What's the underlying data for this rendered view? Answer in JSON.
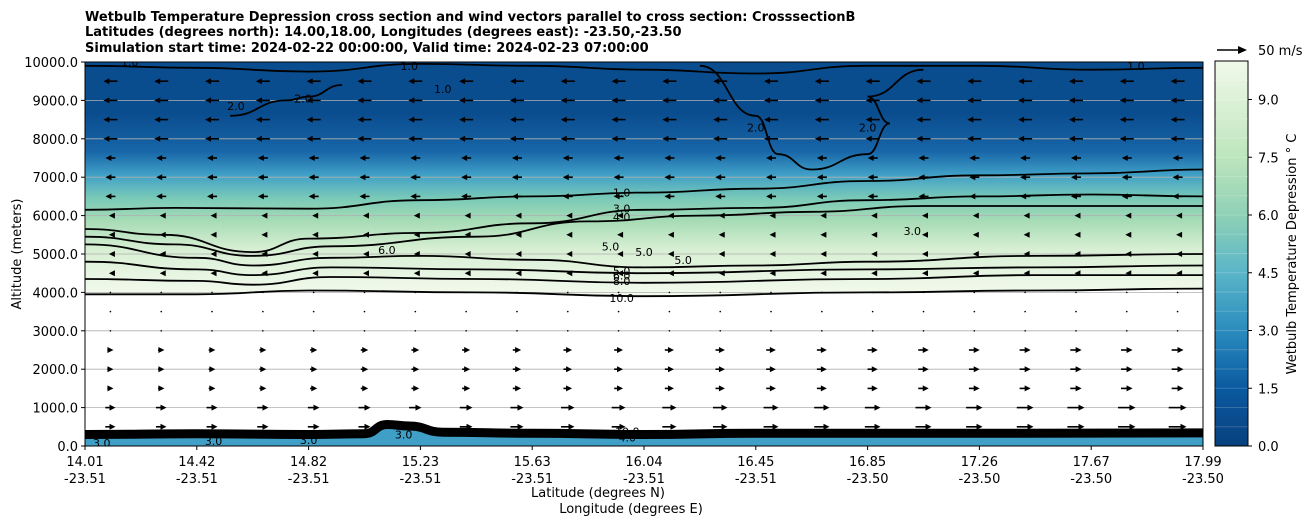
{
  "chart_data": {
    "type": "contour",
    "title": {
      "line1": "Wetbulb Temperature Depression cross section and wind vectors parallel to cross section: CrosssectionB",
      "line2": "Latitudes (degrees north): 14.00,18.00, Longitudes (degrees east): -23.50,-23.50",
      "line3": "Simulation start time: 2024-02-22 00:00:00, Valid time: 2024-02-23 07:00:00"
    },
    "ylabel": "Altitude (meters)",
    "xlabel_lat": "Latitude (degrees N)",
    "xlabel_lon": "Longitude (degrees E)",
    "ylim": [
      0,
      10000
    ],
    "yticks": [
      "0.0",
      "1000.0",
      "2000.0",
      "3000.0",
      "4000.0",
      "5000.0",
      "6000.0",
      "7000.0",
      "8000.0",
      "9000.0",
      "10000.0"
    ],
    "xticks": [
      {
        "lat": "14.01",
        "lon": "-23.51",
        "pos": 0.0
      },
      {
        "lat": "14.42",
        "lon": "-23.51",
        "pos": 0.1
      },
      {
        "lat": "14.82",
        "lon": "-23.51",
        "pos": 0.2
      },
      {
        "lat": "15.23",
        "lon": "-23.51",
        "pos": 0.3
      },
      {
        "lat": "15.63",
        "lon": "-23.51",
        "pos": 0.4
      },
      {
        "lat": "16.04",
        "lon": "-23.51",
        "pos": 0.5
      },
      {
        "lat": "16.45",
        "lon": "-23.51",
        "pos": 0.6
      },
      {
        "lat": "16.85",
        "lon": "-23.50",
        "pos": 0.7
      },
      {
        "lat": "17.26",
        "lon": "-23.50",
        "pos": 0.8
      },
      {
        "lat": "17.67",
        "lon": "-23.50",
        "pos": 0.9
      },
      {
        "lat": "17.99",
        "lon": "-23.50",
        "pos": 1.0
      }
    ],
    "colorbar": {
      "label": "Wetbulb Temperature Depression ° C",
      "range": [
        0,
        10
      ],
      "ticks": [
        "0.0",
        "1.5",
        "3.0",
        "4.5",
        "6.0",
        "7.5",
        "9.0"
      ],
      "tick_values": [
        0,
        1.5,
        3,
        4.5,
        6,
        7.5,
        9
      ]
    },
    "quiver_key": "50 m/s",
    "contour_labels": [
      {
        "text": "1.0",
        "x": 0.48,
        "alt": 6600
      },
      {
        "text": "3.0",
        "x": 0.48,
        "alt": 6180
      },
      {
        "text": "4.0",
        "x": 0.48,
        "alt": 5960
      },
      {
        "text": "5.0",
        "x": 0.47,
        "alt": 5200
      },
      {
        "text": "5.0",
        "x": 0.5,
        "alt": 5050
      },
      {
        "text": "5.0",
        "x": 0.535,
        "alt": 4850
      },
      {
        "text": "5.0",
        "x": 0.48,
        "alt": 4560
      },
      {
        "text": "6.0",
        "x": 0.48,
        "alt": 4440
      },
      {
        "text": "8.0",
        "x": 0.48,
        "alt": 4300
      },
      {
        "text": "10.0",
        "x": 0.48,
        "alt": 3850
      },
      {
        "text": "6.0",
        "x": 0.27,
        "alt": 5100
      },
      {
        "text": "3.0",
        "x": 0.74,
        "alt": 5600
      },
      {
        "text": "2.0",
        "x": 0.6,
        "alt": 8300
      },
      {
        "text": "2.0",
        "x": 0.7,
        "alt": 8300
      },
      {
        "text": "2.0",
        "x": 0.195,
        "alt": 9050
      },
      {
        "text": "2.0",
        "x": 0.135,
        "alt": 8850
      },
      {
        "text": "1.0",
        "x": 0.29,
        "alt": 9900
      },
      {
        "text": "1.0",
        "x": 0.32,
        "alt": 9300
      },
      {
        "text": "1.0",
        "x": 0.94,
        "alt": 9900
      },
      {
        "text": "1.0",
        "x": 0.04,
        "alt": 10000
      },
      {
        "text": "10.0",
        "x": 0.485,
        "alt": 380
      },
      {
        "text": "4.0",
        "x": 0.485,
        "alt": 220
      },
      {
        "text": "3.0",
        "x": 0.115,
        "alt": 130
      },
      {
        "text": "3.0",
        "x": 0.2,
        "alt": 150
      },
      {
        "text": "3.0",
        "x": 0.285,
        "alt": 300
      },
      {
        "text": "3.0",
        "x": 0.015,
        "alt": 80
      }
    ],
    "contour_lines": [
      {
        "level": 1.0,
        "pts": [
          [
            0,
            6150
          ],
          [
            0.08,
            6200
          ],
          [
            0.2,
            6180
          ],
          [
            0.3,
            6400
          ],
          [
            0.4,
            6500
          ],
          [
            0.5,
            6600
          ],
          [
            0.6,
            6700
          ],
          [
            0.7,
            6900
          ],
          [
            0.8,
            7050
          ],
          [
            0.9,
            7100
          ],
          [
            1,
            7200
          ]
        ]
      },
      {
        "level": 3.0,
        "pts": [
          [
            0,
            5650
          ],
          [
            0.07,
            5500
          ],
          [
            0.15,
            5050
          ],
          [
            0.2,
            5400
          ],
          [
            0.3,
            5550
          ],
          [
            0.4,
            5800
          ],
          [
            0.5,
            6150
          ],
          [
            0.6,
            6200
          ],
          [
            0.7,
            6400
          ],
          [
            0.8,
            6500
          ],
          [
            0.9,
            6550
          ],
          [
            1,
            6500
          ]
        ]
      },
      {
        "level": 4.0,
        "pts": [
          [
            0,
            5450
          ],
          [
            0.08,
            5250
          ],
          [
            0.15,
            4950
          ],
          [
            0.22,
            5200
          ],
          [
            0.35,
            5450
          ],
          [
            0.45,
            5850
          ],
          [
            0.55,
            6000
          ],
          [
            0.65,
            6100
          ],
          [
            0.75,
            6250
          ],
          [
            0.9,
            6250
          ],
          [
            1,
            6250
          ]
        ]
      },
      {
        "level": 5.0,
        "pts": [
          [
            0,
            5250
          ],
          [
            0.1,
            4900
          ],
          [
            0.15,
            4700
          ],
          [
            0.22,
            4900
          ],
          [
            0.3,
            4950
          ],
          [
            0.4,
            4850
          ],
          [
            0.5,
            4650
          ],
          [
            0.6,
            4700
          ],
          [
            0.7,
            4800
          ],
          [
            0.85,
            4950
          ],
          [
            1,
            5000
          ]
        ]
      },
      {
        "level": 6.0,
        "pts": [
          [
            0,
            4800
          ],
          [
            0.1,
            4600
          ],
          [
            0.15,
            4450
          ],
          [
            0.22,
            4650
          ],
          [
            0.35,
            4600
          ],
          [
            0.5,
            4500
          ],
          [
            0.7,
            4600
          ],
          [
            0.85,
            4650
          ],
          [
            1,
            4700
          ]
        ]
      },
      {
        "level": 8.0,
        "pts": [
          [
            0,
            4350
          ],
          [
            0.1,
            4300
          ],
          [
            0.15,
            4200
          ],
          [
            0.22,
            4400
          ],
          [
            0.35,
            4350
          ],
          [
            0.5,
            4250
          ],
          [
            0.7,
            4350
          ],
          [
            0.85,
            4450
          ],
          [
            1,
            4450
          ]
        ]
      },
      {
        "level": 10.0,
        "pts": [
          [
            0,
            3950
          ],
          [
            0.1,
            3950
          ],
          [
            0.2,
            4050
          ],
          [
            0.35,
            4000
          ],
          [
            0.5,
            3900
          ],
          [
            0.7,
            4000
          ],
          [
            0.85,
            4050
          ],
          [
            1,
            4100
          ]
        ]
      }
    ]
  }
}
